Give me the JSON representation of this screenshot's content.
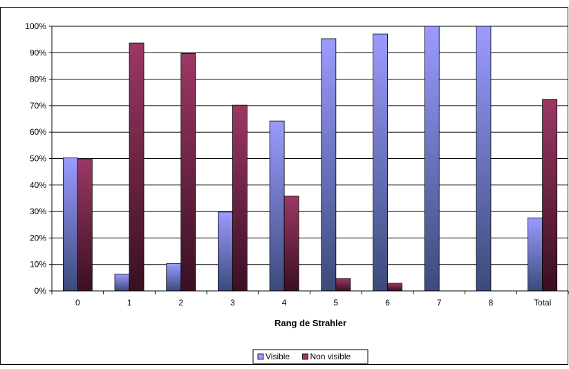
{
  "chart_data": {
    "type": "bar",
    "title": "",
    "xlabel": "Rang de Strahler",
    "ylabel": "",
    "categories": [
      "0",
      "1",
      "2",
      "3",
      "4",
      "5",
      "6",
      "7",
      "8",
      "Total"
    ],
    "ylim": [
      0,
      100
    ],
    "yticks": [
      "0%",
      "10%",
      "20%",
      "30%",
      "40%",
      "50%",
      "60%",
      "70%",
      "80%",
      "90%",
      "100%"
    ],
    "grid": true,
    "legend_position": "bottom",
    "series": [
      {
        "name": "Visible",
        "values": [
          50.3,
          6.3,
          10.3,
          29.8,
          64.2,
          95.3,
          97.1,
          100,
          100,
          27.6
        ],
        "color_top": "#9b9bff",
        "color_bottom": "#3b4a7a"
      },
      {
        "name": "Non visible",
        "values": [
          49.7,
          93.7,
          89.7,
          70.2,
          35.8,
          4.7,
          2.9,
          0,
          0,
          72.4
        ],
        "color_top": "#9b3864",
        "color_bottom": "#3a0f22"
      }
    ]
  }
}
